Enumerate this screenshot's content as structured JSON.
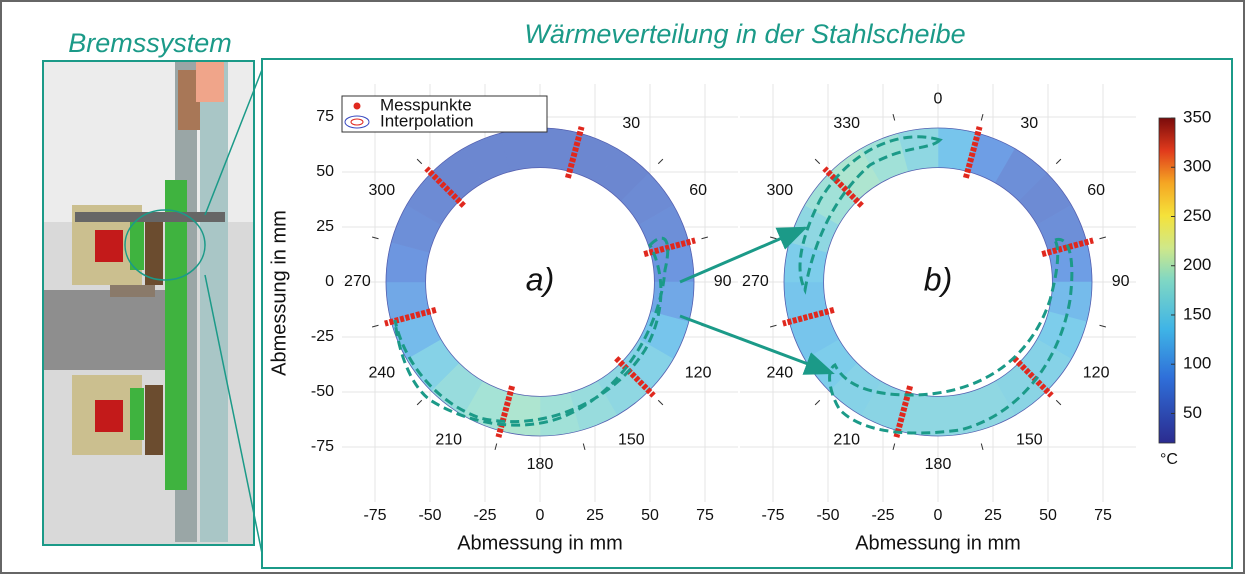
{
  "figure": {
    "left_title": "Bremssystem",
    "right_title": "Wärmeverteilung in der Stahlscheibe"
  },
  "legend": {
    "points": "Messpunkte",
    "interpolation": "Interpolation"
  },
  "colorbar": {
    "label": "°C",
    "clim": [
      20,
      350
    ],
    "ticks": [
      50,
      100,
      150,
      200,
      250,
      300,
      350
    ]
  },
  "chart_data": [
    {
      "type": "ring",
      "panel_label": "a)",
      "xlabel": "Abmessung in mm",
      "ylabel": "Abmessung in mm",
      "xlim": [
        -90,
        90
      ],
      "ylim": [
        -100,
        90
      ],
      "xticks": [
        -75,
        -50,
        -25,
        0,
        25,
        50,
        75
      ],
      "yticks": [
        -75,
        -50,
        -25,
        0,
        25,
        50,
        75
      ],
      "show_ytick_labels": true,
      "grid": true,
      "angle_ticks": [
        30,
        60,
        90,
        120,
        150,
        180,
        210,
        240,
        270,
        300
      ],
      "measurement_angles": [
        15,
        75,
        135,
        195,
        255,
        315
      ],
      "sector_temperatures": [
        60,
        60,
        60,
        65,
        70,
        80,
        100,
        130,
        150,
        160,
        170,
        180,
        190,
        185,
        170,
        150,
        120,
        100,
        80,
        70,
        65,
        60,
        60,
        60
      ]
    },
    {
      "type": "ring",
      "panel_label": "b)",
      "xlabel": "Abmessung in mm",
      "xlim": [
        -90,
        90
      ],
      "ylim": [
        -100,
        90
      ],
      "xticks": [
        -75,
        -50,
        -25,
        0,
        25,
        50,
        75
      ],
      "yticks": [
        -75,
        -50,
        -25,
        0,
        25,
        50,
        75
      ],
      "show_ytick_labels": false,
      "grid": true,
      "angle_ticks": [
        0,
        30,
        60,
        90,
        120,
        150,
        180,
        210,
        240,
        270,
        300,
        330
      ],
      "measurement_angles": [
        15,
        75,
        135,
        195,
        255,
        315
      ],
      "sector_temperatures": [
        130,
        90,
        70,
        65,
        70,
        90,
        120,
        140,
        150,
        155,
        160,
        160,
        160,
        155,
        150,
        140,
        130,
        130,
        140,
        160,
        180,
        190,
        180,
        160
      ]
    }
  ]
}
